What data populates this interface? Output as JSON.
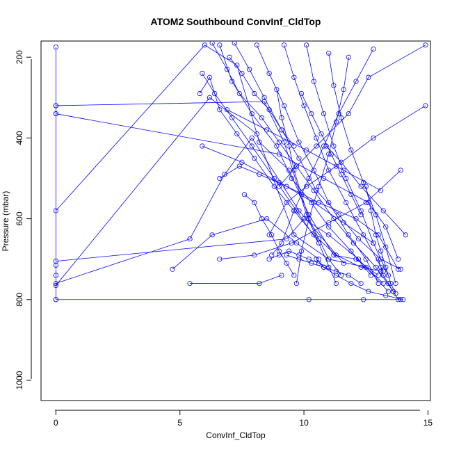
{
  "chart_data": {
    "type": "line",
    "title": "ATOM2 Southbound ConvInf_CldTop",
    "xlabel": "ConvInf_CldTop",
    "ylabel": "Pressure (mbar)",
    "xlim": [
      -0.6,
      15.1
    ],
    "ylim": [
      1050,
      160
    ],
    "y_reversed": true,
    "grid": false,
    "legend": "none",
    "x_ticks": [
      "0",
      "5",
      "10",
      "15"
    ],
    "y_ticks": [
      "200",
      "400",
      "600",
      "800",
      "1000"
    ],
    "x_tick_values": [
      0,
      5,
      10,
      15
    ],
    "y_tick_values": [
      200,
      400,
      600,
      800,
      1000
    ],
    "colors": {
      "series": "#0000ff",
      "axis": "#000000"
    },
    "series": [
      {
        "x": [
          0,
          0,
          0,
          0,
          0,
          0
        ],
        "y": [
          175,
          320,
          340,
          715,
          740,
          800
        ]
      },
      {
        "x": [
          0,
          6.2,
          8.1,
          9.6,
          11.0,
          12.5,
          13.2
        ],
        "y": [
          765,
          300,
          390,
          640,
          700,
          720,
          760
        ]
      },
      {
        "x": [
          0,
          6.0,
          7.3,
          8.2,
          9.4,
          10.2,
          11.2,
          12.1,
          13.0
        ],
        "y": [
          580,
          170,
          220,
          410,
          480,
          590,
          690,
          700,
          740
        ]
      },
      {
        "x": [
          0,
          9.0,
          10.8,
          12.6,
          13.3,
          13.8
        ],
        "y": [
          340,
          440,
          500,
          560,
          620,
          700
        ]
      },
      {
        "x": [
          0,
          8.4,
          9.2,
          10.1,
          11.3
        ],
        "y": [
          320,
          310,
          410,
          590,
          760
        ]
      },
      {
        "x": [
          0,
          9.3,
          10.0,
          11.0,
          12.2,
          13.4
        ],
        "y": [
          705,
          650,
          600,
          640,
          700,
          780
        ]
      },
      {
        "x": [
          0,
          5.4,
          6.8,
          7.9,
          9.8,
          11.6
        ],
        "y": [
          760,
          650,
          490,
          400,
          580,
          710
        ]
      },
      {
        "x": [
          0,
          10.2,
          12.4,
          13.9
        ],
        "y": [
          800,
          800,
          800,
          800
        ]
      },
      {
        "x": [
          5.4,
          8.2,
          9.1
        ],
        "y": [
          760,
          760,
          740
        ]
      },
      {
        "x": [
          4.7,
          6.3,
          8.5,
          9.7,
          10.6
        ],
        "y": [
          725,
          640,
          600,
          660,
          700
        ]
      },
      {
        "x": [
          14.9,
          12.8,
          11.3,
          10.1,
          9.3,
          8.6
        ],
        "y": [
          320,
          400,
          470,
          520,
          560,
          640
        ]
      },
      {
        "x": [
          14.9,
          12.6,
          11.8,
          10.5,
          9.7,
          9.0
        ],
        "y": [
          170,
          250,
          340,
          420,
          470,
          520
        ]
      },
      {
        "x": [
          14.1,
          13.2,
          12.3,
          11.5,
          10.9
        ],
        "y": [
          640,
          580,
          520,
          460,
          420
        ]
      },
      {
        "x": [
          13.9,
          12.5,
          11.0,
          9.5,
          8.0,
          6.6
        ],
        "y": [
          480,
          560,
          610,
          660,
          690,
          700
        ]
      },
      {
        "x": [
          6.3,
          6.9,
          7.4,
          8.3,
          9.0,
          9.7,
          10.4,
          11.2,
          12.0,
          12.9,
          13.6
        ],
        "y": [
          165,
          230,
          290,
          350,
          410,
          470,
          530,
          600,
          660,
          720,
          780
        ]
      },
      {
        "x": [
          6.6,
          7.1,
          7.9,
          8.9,
          9.5,
          10.3,
          11.0,
          11.9,
          12.7
        ],
        "y": [
          170,
          260,
          340,
          420,
          500,
          560,
          620,
          680,
          740
        ]
      },
      {
        "x": [
          5.8,
          6.2,
          6.6,
          7.3,
          8.0,
          8.8,
          9.6,
          10.4,
          11.3,
          12.3,
          13.1
        ],
        "y": [
          290,
          250,
          330,
          390,
          450,
          520,
          580,
          640,
          690,
          720,
          730
        ]
      },
      {
        "x": [
          5.9,
          7.5,
          9.0,
          10.6,
          12.1,
          13.0,
          13.8
        ],
        "y": [
          420,
          460,
          510,
          560,
          600,
          640,
          725
        ]
      },
      {
        "x": [
          7.2,
          7.8,
          8.4,
          9.1,
          9.8,
          10.5,
          11.4,
          12.2,
          13.1,
          13.9
        ],
        "y": [
          165,
          230,
          300,
          380,
          450,
          530,
          590,
          650,
          700,
          725
        ]
      },
      {
        "x": [
          8.1,
          8.6,
          9.2,
          9.8,
          10.4,
          11.0,
          11.8,
          12.5,
          13.0
        ],
        "y": [
          170,
          240,
          320,
          410,
          480,
          560,
          640,
          700,
          760
        ]
      },
      {
        "x": [
          9.2,
          9.6,
          10.0,
          10.5,
          11.0,
          11.7,
          12.4,
          13.2
        ],
        "y": [
          170,
          250,
          320,
          400,
          480,
          560,
          640,
          730
        ]
      },
      {
        "x": [
          10.1,
          10.4,
          10.8,
          11.2,
          11.7,
          12.3,
          12.8,
          13.4
        ],
        "y": [
          170,
          260,
          340,
          420,
          500,
          580,
          660,
          740
        ]
      },
      {
        "x": [
          11.0,
          11.2,
          11.5,
          11.9,
          12.4,
          12.9,
          13.3,
          13.7
        ],
        "y": [
          190,
          270,
          350,
          430,
          510,
          590,
          670,
          760
        ]
      },
      {
        "x": [
          11.8,
          11.6,
          11.3,
          11.0,
          10.6,
          10.2,
          9.9,
          9.7
        ],
        "y": [
          200,
          280,
          360,
          440,
          520,
          600,
          680,
          760
        ]
      },
      {
        "x": [
          12.8,
          12.1,
          11.4,
          10.8,
          10.2,
          9.6,
          9.1,
          8.7
        ],
        "y": [
          180,
          260,
          340,
          420,
          500,
          580,
          660,
          690
        ]
      },
      {
        "x": [
          8.9,
          9.1,
          9.4,
          9.6,
          9.9,
          10.2,
          10.6,
          11.0,
          11.5
        ],
        "y": [
          280,
          350,
          420,
          480,
          540,
          600,
          650,
          700,
          740
        ]
      },
      {
        "x": [
          7.6,
          8.0,
          8.3,
          8.7,
          9.0,
          9.3,
          9.6
        ],
        "y": [
          540,
          560,
          600,
          640,
          680,
          710,
          740
        ]
      },
      {
        "x": [
          6.6,
          7.4,
          8.2,
          9.3,
          10.4,
          11.6,
          12.8
        ],
        "y": [
          500,
          470,
          490,
          520,
          560,
          610,
          660
        ]
      },
      {
        "x": [
          5.9,
          6.4,
          7.1,
          7.9,
          8.8,
          9.7,
          10.6
        ],
        "y": [
          240,
          290,
          350,
          420,
          500,
          580,
          660
        ]
      },
      {
        "x": [
          10.5,
          10.8,
          11.3,
          11.9,
          12.6,
          13.3,
          14.0
        ],
        "y": [
          700,
          720,
          740,
          760,
          780,
          790,
          800
        ]
      },
      {
        "x": [
          9.3,
          9.8,
          10.3,
          10.8,
          11.3,
          11.8,
          12.3
        ],
        "y": [
          690,
          700,
          710,
          720,
          730,
          740,
          760
        ]
      },
      {
        "x": [
          12.5,
          12.7,
          12.9,
          13.1,
          13.3,
          13.5,
          13.7
        ],
        "y": [
          520,
          580,
          640,
          680,
          720,
          760,
          785
        ]
      },
      {
        "x": [
          13.0,
          13.1,
          13.2,
          13.4,
          13.6,
          13.8
        ],
        "y": [
          700,
          720,
          740,
          760,
          780,
          800
        ]
      },
      {
        "x": [
          8.6,
          9.0,
          9.4,
          9.8,
          10.2,
          10.6,
          11.0
        ],
        "y": [
          700,
          690,
          680,
          690,
          700,
          710,
          720
        ]
      },
      {
        "x": [
          7.0,
          7.5,
          8.0,
          8.6,
          9.1,
          9.6
        ],
        "y": [
          200,
          240,
          290,
          330,
          380,
          420
        ]
      },
      {
        "x": [
          9.9,
          10.3,
          10.7,
          11.1,
          11.5,
          11.9,
          12.3
        ],
        "y": [
          290,
          340,
          390,
          440,
          490,
          540,
          590
        ]
      },
      {
        "x": [
          6.9,
          8.5,
          10.1,
          11.6,
          13.1
        ],
        "y": [
          330,
          380,
          430,
          480,
          530
        ]
      }
    ]
  }
}
